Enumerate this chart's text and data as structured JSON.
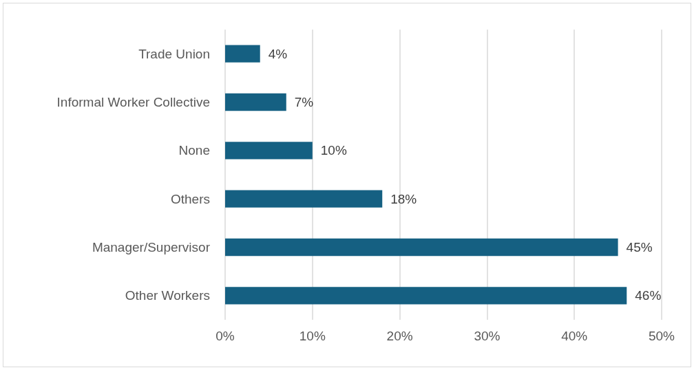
{
  "chart_data": {
    "type": "bar",
    "orientation": "horizontal",
    "categories": [
      "Trade Union",
      "Informal Worker Collective",
      "None",
      "Others",
      "Manager/Supervisor",
      "Other Workers"
    ],
    "values": [
      4,
      7,
      10,
      18,
      45,
      46
    ],
    "value_labels": [
      "4%",
      "7%",
      "10%",
      "18%",
      "45%",
      "46%"
    ],
    "color": "#156082",
    "xlim": [
      0,
      50
    ],
    "xticks": [
      {
        "value": 0,
        "label": "0%"
      },
      {
        "value": 10,
        "label": "10%"
      },
      {
        "value": 20,
        "label": "20%"
      },
      {
        "value": 30,
        "label": "30%"
      },
      {
        "value": 40,
        "label": "40%"
      },
      {
        "value": 50,
        "label": "50%"
      }
    ],
    "grid": "x"
  }
}
